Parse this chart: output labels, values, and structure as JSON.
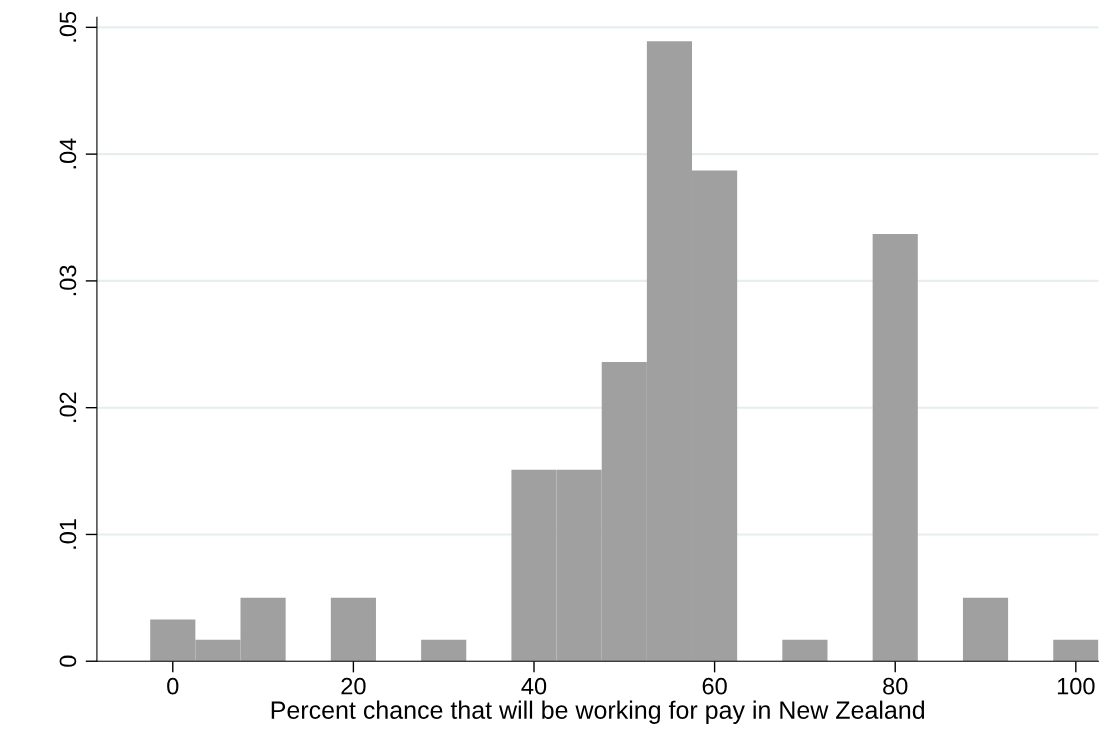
{
  "chart_data": {
    "type": "histogram",
    "xlabel": "Percent chance that will be working for pay in New Zealand",
    "bins": [
      -2.5,
      2.5,
      7.5,
      12.5,
      17.5,
      22.5,
      27.5,
      32.5,
      37.5,
      42.5,
      47.5,
      52.5,
      57.5,
      62.5,
      67.5,
      72.5,
      77.5,
      82.5,
      87.5,
      92.5,
      97.5,
      102.5
    ],
    "values": [
      0.0033,
      0.0017,
      0.005,
      0,
      0.005,
      0,
      0.0017,
      0,
      0.0151,
      0.0151,
      0.0236,
      0.0489,
      0.0387,
      0,
      0.0017,
      0,
      0.0337,
      0,
      0.005,
      0,
      0.0017
    ],
    "color": "#a0a0a0",
    "xlim": [
      -8.4,
      102.5
    ],
    "xticks": [
      0,
      20,
      40,
      60,
      80,
      100
    ],
    "ylim": [
      0,
      0.0508
    ],
    "yticks": [
      0,
      {
        "value": 0.01,
        "label": ".01"
      },
      {
        "value": 0.02,
        "label": ".02"
      },
      {
        "value": 0.03,
        "label": ".03"
      },
      {
        "value": 0.04,
        "label": ".04"
      },
      {
        "value": 0.05,
        "label": ".05"
      }
    ],
    "grid": "y"
  }
}
